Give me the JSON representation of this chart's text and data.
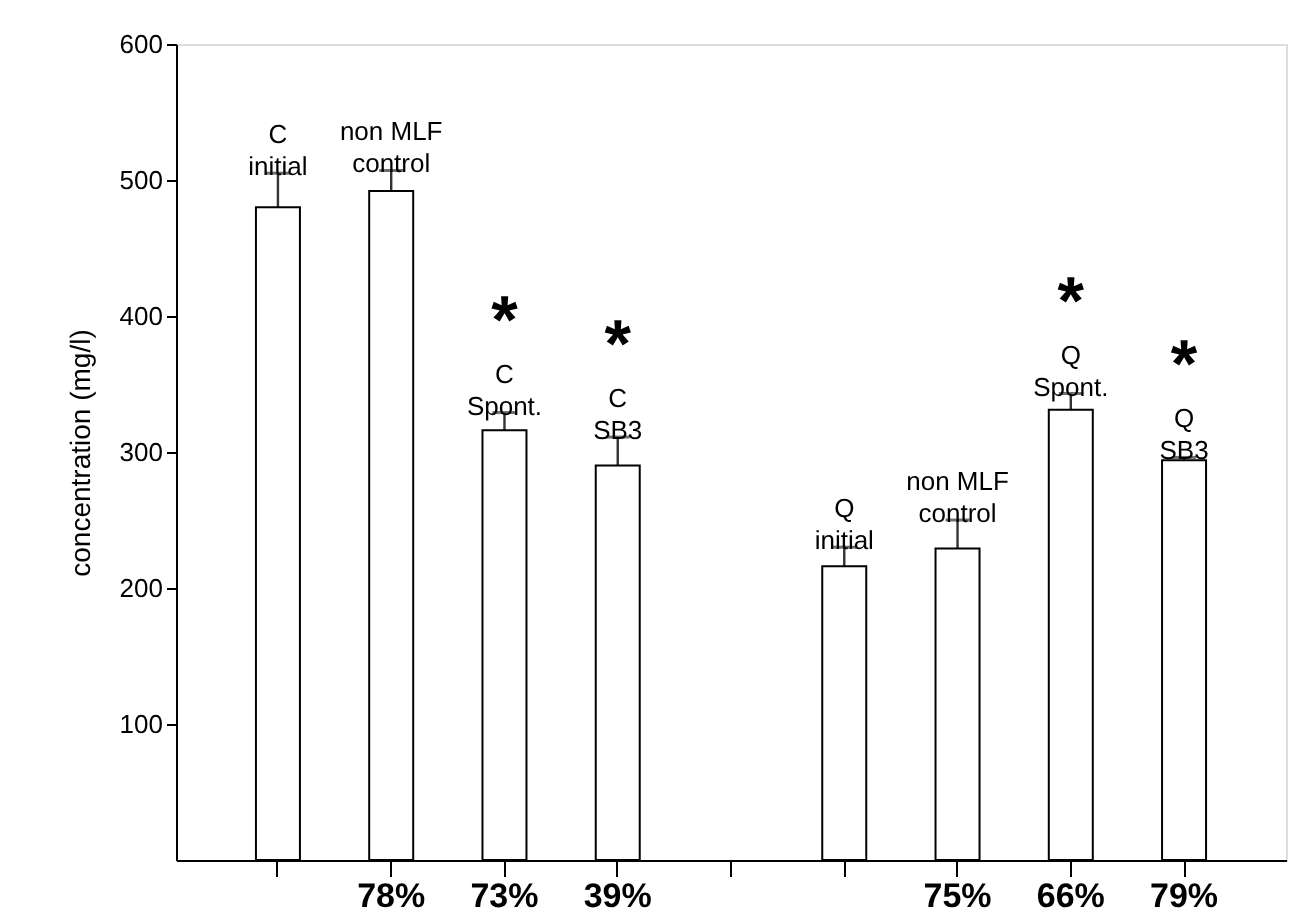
{
  "chart_data": {
    "type": "bar",
    "ylabel": "concentration (mg/l)",
    "categories": [
      null,
      "78%",
      "73%",
      "39%",
      null,
      null,
      "75%",
      "66%",
      "79%"
    ],
    "values": [
      480,
      492,
      316,
      290,
      null,
      216,
      229,
      331,
      294
    ],
    "errors": [
      25,
      15,
      13,
      21,
      null,
      14,
      21,
      12,
      2
    ],
    "color": "#ffffff",
    "ylim": [
      0,
      600
    ],
    "yticks": [
      100,
      200,
      300,
      400,
      500,
      600
    ],
    "annotations": [
      "C\ninitial",
      "non MLF\ncontrol",
      "*",
      "C\nSpont.",
      "*",
      "C\nSB3",
      "Q\ninitial",
      "non MLF\ncontrol",
      "*",
      "Q\nSpont.",
      "*",
      "Q\nSB3"
    ]
  }
}
